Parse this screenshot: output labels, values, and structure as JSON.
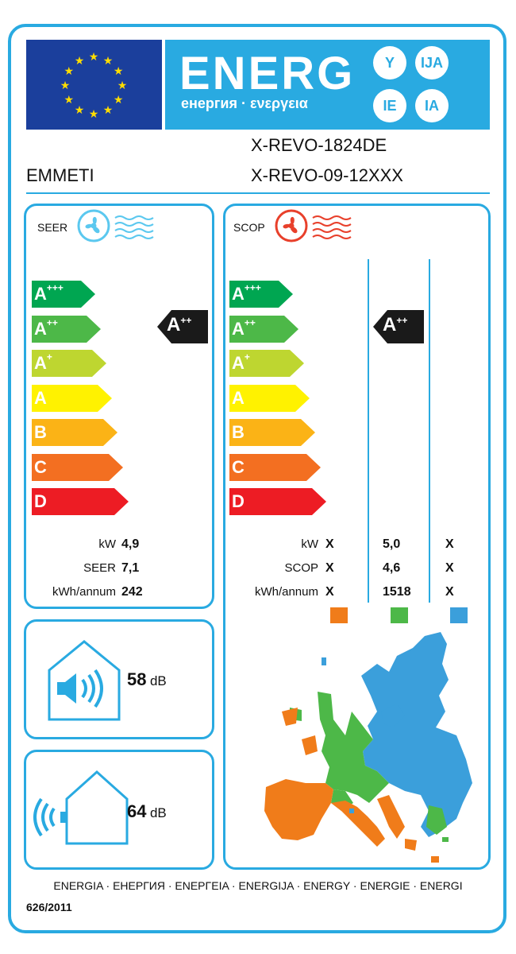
{
  "header": {
    "energy_word": "ENERG",
    "energy_subtitle": "енергия · ενεργεια",
    "language_codes": [
      "Y",
      "IJA",
      "IE",
      "IA"
    ],
    "supplier": "EMMETI",
    "model_outdoor": "X-REVO-1824DE",
    "model_indoor": "X-REVO-09-12XXX"
  },
  "colors": {
    "brand_blue": "#29aae1",
    "eu_blue": "#1b3f9c",
    "eu_star": "#ffdd00",
    "cooling_icon": "#5bc8ef",
    "heating_icon": "#e8402b",
    "climate_warmer": "#f07c1a",
    "climate_average": "#4db848",
    "climate_colder": "#3b9fdb"
  },
  "scale": [
    {
      "letter": "A",
      "sup": "+++",
      "color": "#00a651"
    },
    {
      "letter": "A",
      "sup": "++",
      "color": "#4db848"
    },
    {
      "letter": "A",
      "sup": "+",
      "color": "#bed630"
    },
    {
      "letter": "A",
      "sup": "",
      "color": "#fff200"
    },
    {
      "letter": "B",
      "sup": "",
      "color": "#fbb316"
    },
    {
      "letter": "C",
      "sup": "",
      "color": "#f36f21"
    },
    {
      "letter": "D",
      "sup": "",
      "color": "#ed1c24"
    }
  ],
  "seer": {
    "label": "SEER",
    "icon": "cooling-fan-icon",
    "rating_letter": "A",
    "rating_sup": "++",
    "rows": [
      {
        "label": "kW",
        "value": "4,9"
      },
      {
        "label": "SEER",
        "value": "7,1"
      },
      {
        "label": "kWh/annum",
        "value": "242"
      }
    ]
  },
  "scop": {
    "label": "SCOP",
    "icon": "heating-fan-icon",
    "rating_letter": "A",
    "rating_sup": "++",
    "rows": [
      {
        "label": "kW",
        "warmer": "X",
        "average": "5,0",
        "colder": "X"
      },
      {
        "label": "SCOP",
        "warmer": "X",
        "average": "4,6",
        "colder": "X"
      },
      {
        "label": "kWh/annum",
        "warmer": "X",
        "average": "1518",
        "colder": "X"
      }
    ]
  },
  "sound": {
    "indoor_value": "58",
    "outdoor_value": "64",
    "unit": "dB"
  },
  "footer": {
    "languages": "ENERGIA · ЕНЕРГИЯ · ΕΝΕΡΓΕΙΑ · ENERGIJA · ENERGY · ENERGIE · ENERGI",
    "regulation": "626/2011"
  }
}
